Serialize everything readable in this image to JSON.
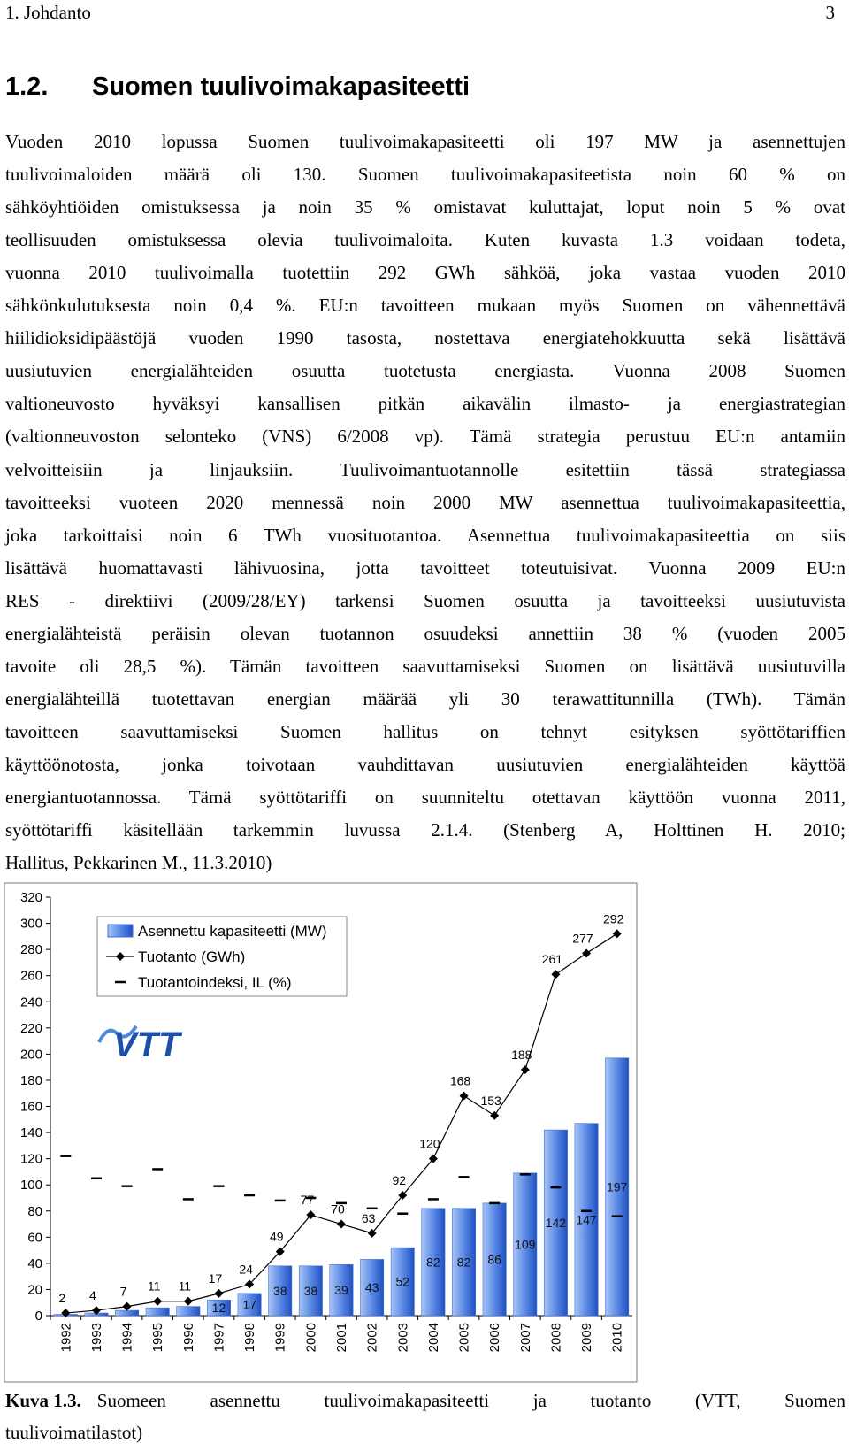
{
  "header": {
    "chapter": "1. Johdanto",
    "page": "3"
  },
  "section": {
    "number": "1.2.",
    "title": "Suomen tuulivoimakapasiteetti"
  },
  "paragraph": {
    "lines": [
      "Vuoden 2010 lopussa Suomen tuulivoimakapasiteetti oli 197 MW ja asennettujen",
      "tuulivoimaloiden määrä oli 130. Suomen tuulivoimakapasiteetista noin 60 % on",
      "sähköyhtiöiden omistuksessa ja noin 35 % omistavat kuluttajat, loput noin 5 % ovat",
      "teollisuuden omistuksessa olevia tuulivoimaloita. Kuten kuvasta 1.3 voidaan todeta,",
      "vuonna 2010 tuulivoimalla tuotettiin 292 GWh sähköä, joka vastaa vuoden 2010",
      "sähkönkulutuksesta noin 0,4 %. EU:n tavoitteen mukaan myös Suomen on vähennettävä",
      "hiilidioksidipäästöjä vuoden 1990 tasosta, nostettava energiatehokkuutta sekä lisättävä",
      "uusiutuvien energialähteiden osuutta tuotetusta energiasta. Vuonna 2008 Suomen",
      "valtioneuvosto hyväksyi kansallisen pitkän aikavälin ilmasto- ja energiastrategian",
      "(valtionneuvoston selonteko (VNS) 6/2008 vp). Tämä strategia perustuu EU:n antamiin",
      "velvoitteisiin ja linjauksiin. Tuulivoimantuotannolle esitettiin tässä strategiassa",
      "tavoitteeksi vuoteen 2020 mennessä noin 2000 MW asennettua tuulivoimakapasiteettia,",
      "joka tarkoittaisi noin 6 TWh vuosituotantoa. Asennettua tuulivoimakapasiteettia on siis",
      "lisättävä huomattavasti lähivuosina, jotta tavoitteet toteutuisivat. Vuonna 2009 EU:n",
      "RES - direktiivi (2009/28/EY) tarkensi Suomen osuutta ja tavoitteeksi uusiutuvista",
      "energialähteistä peräisin olevan tuotannon osuudeksi annettiin 38 % (vuoden 2005",
      "tavoite oli 28,5 %). Tämän tavoitteen saavuttamiseksi Suomen on lisättävä uusiutuvilla",
      "energialähteillä tuotettavan energian määrää yli 30 terawattitunnilla (TWh). Tämän",
      "tavoitteen saavuttamiseksi Suomen hallitus on tehnyt esityksen syöttötariffien",
      "käyttöönotosta, jonka toivotaan vauhdittavan uusiutuvien energialähteiden käyttöä",
      "energiantuotannossa. Tämä syöttötariffi on suunniteltu otettavan käyttöön vuonna 2011,",
      "syöttötariffi käsitellään tarkemmin luvussa 2.1.4. (Stenberg A, Holttinen H. 2010;",
      "Hallitus, Pekkarinen M., 11.3.2010)"
    ]
  },
  "chart_data": {
    "type": "bar_line",
    "logo": "VTT",
    "categories": [
      "1992",
      "1993",
      "1994",
      "1995",
      "1996",
      "1997",
      "1998",
      "1999",
      "2000",
      "2001",
      "2002",
      "2003",
      "2004",
      "2005",
      "2006",
      "2007",
      "2008",
      "2009",
      "2010"
    ],
    "series": [
      {
        "name": "Asennettu kapasiteetti (MW)",
        "kind": "bar",
        "color": "#3d6fd8",
        "values": [
          1,
          2,
          4,
          6,
          7,
          12,
          17,
          38,
          38,
          39,
          43,
          52,
          82,
          82,
          86,
          109,
          142,
          147,
          197
        ],
        "value_labels": [
          null,
          null,
          null,
          null,
          null,
          "12",
          "17",
          "38",
          "38",
          "39",
          "43",
          "52",
          "82",
          "82",
          "86",
          "109",
          "142",
          "147",
          "197"
        ]
      },
      {
        "name": "Tuotanto (GWh)",
        "kind": "line",
        "color": "#000000",
        "values": [
          2,
          4,
          7,
          11,
          11,
          17,
          24,
          49,
          77,
          70,
          63,
          92,
          120,
          168,
          153,
          188,
          261,
          277,
          292
        ],
        "value_labels": [
          "2",
          "4",
          "7",
          "11",
          "11",
          "17",
          "24",
          "49",
          "77",
          "70",
          "63",
          "92",
          "120",
          "168",
          "153",
          "188",
          "261",
          "277",
          "292"
        ]
      },
      {
        "name": "Tuotantoindeksi, IL (%)",
        "kind": "dash",
        "color": "#000000",
        "values": [
          122,
          105,
          99,
          112,
          89,
          99,
          92,
          88,
          90,
          86,
          82,
          78,
          89,
          106,
          86,
          108,
          98,
          80,
          76
        ]
      }
    ],
    "ylim": [
      0,
      320
    ],
    "yticks": [
      0,
      20,
      40,
      60,
      80,
      100,
      120,
      140,
      160,
      180,
      200,
      220,
      240,
      260,
      280,
      300,
      320
    ],
    "legend": "upper-left"
  },
  "caption": {
    "label": "Kuva 1.3.",
    "lines": [
      "Suomeen asennettu tuulivoimakapasiteetti ja tuotanto (VTT, Suomen",
      "tuulivoimatilastot)"
    ]
  }
}
